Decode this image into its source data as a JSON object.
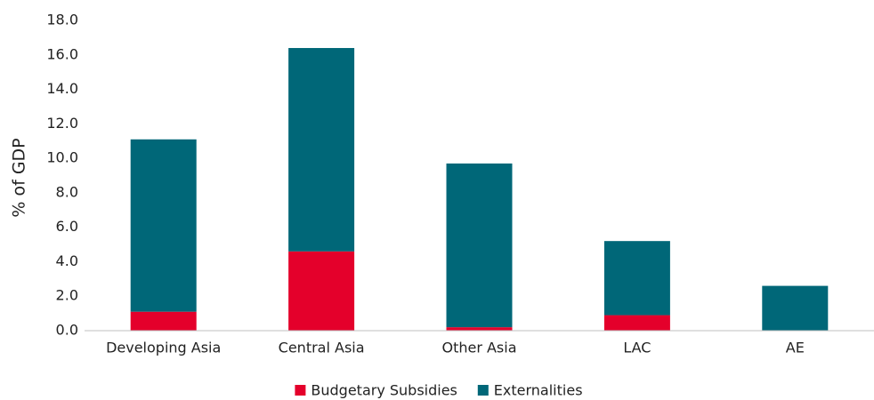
{
  "chart_data": {
    "type": "stacked_bar",
    "y_label": "% of GDP",
    "categories": [
      "Developing Asia",
      "Central Asia",
      "Other Asia",
      "LAC",
      "AE"
    ],
    "series": [
      {
        "name": "Budgetary Subsidies",
        "color": "#e4002b",
        "values": [
          1.1,
          4.6,
          0.2,
          0.9,
          0
        ]
      },
      {
        "name": "Externalities",
        "color": "#006778",
        "values": [
          10.0,
          11.8,
          9.5,
          4.3,
          2.6
        ]
      }
    ],
    "ylim": [
      0,
      18
    ],
    "yticks": [
      {
        "value": 0,
        "label": "0.0"
      },
      {
        "value": 2,
        "label": "2.0"
      },
      {
        "value": 4,
        "label": "4.0"
      },
      {
        "value": 6,
        "label": "6.0"
      },
      {
        "value": 8,
        "label": "8.0"
      },
      {
        "value": 10,
        "label": "10.0"
      },
      {
        "value": 12,
        "label": "12.0"
      },
      {
        "value": 14,
        "label": "14.0"
      },
      {
        "value": 16,
        "label": "16.0"
      },
      {
        "value": 18,
        "label": "18.0"
      }
    ],
    "grid": false,
    "legend": "bottom"
  }
}
